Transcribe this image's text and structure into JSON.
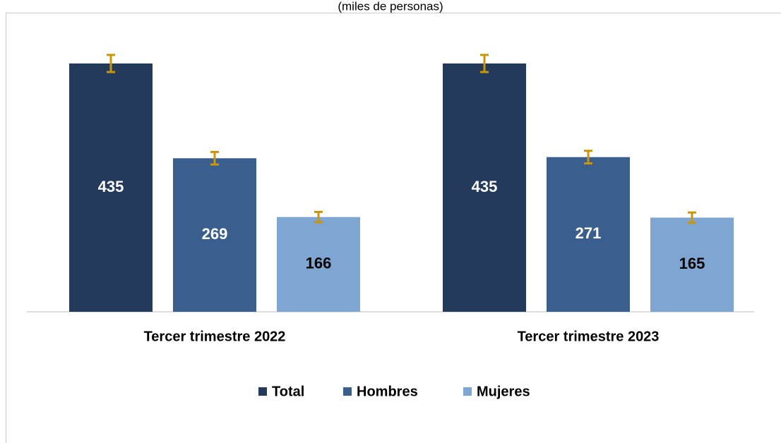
{
  "chart_data": {
    "type": "bar",
    "subtitle": "(miles de personas)",
    "categories": [
      "Tercer trimestre 2022",
      "Tercer trimestre 2023"
    ],
    "series": [
      {
        "name": "Total",
        "color": "#243a5a",
        "label_color": "#ffffff",
        "values": [
          435,
          435
        ],
        "errors": [
          15,
          15
        ]
      },
      {
        "name": "Hombres",
        "color": "#3a5f8f",
        "label_color": "#ffffff",
        "values": [
          269,
          271
        ],
        "errors": [
          11,
          11
        ]
      },
      {
        "name": "Mujeres",
        "color": "#7fa6d2",
        "label_color": "#000000",
        "values": [
          166,
          165
        ],
        "errors": [
          9,
          9
        ]
      }
    ],
    "error_color": "#c8960a",
    "legend": "bottom"
  }
}
